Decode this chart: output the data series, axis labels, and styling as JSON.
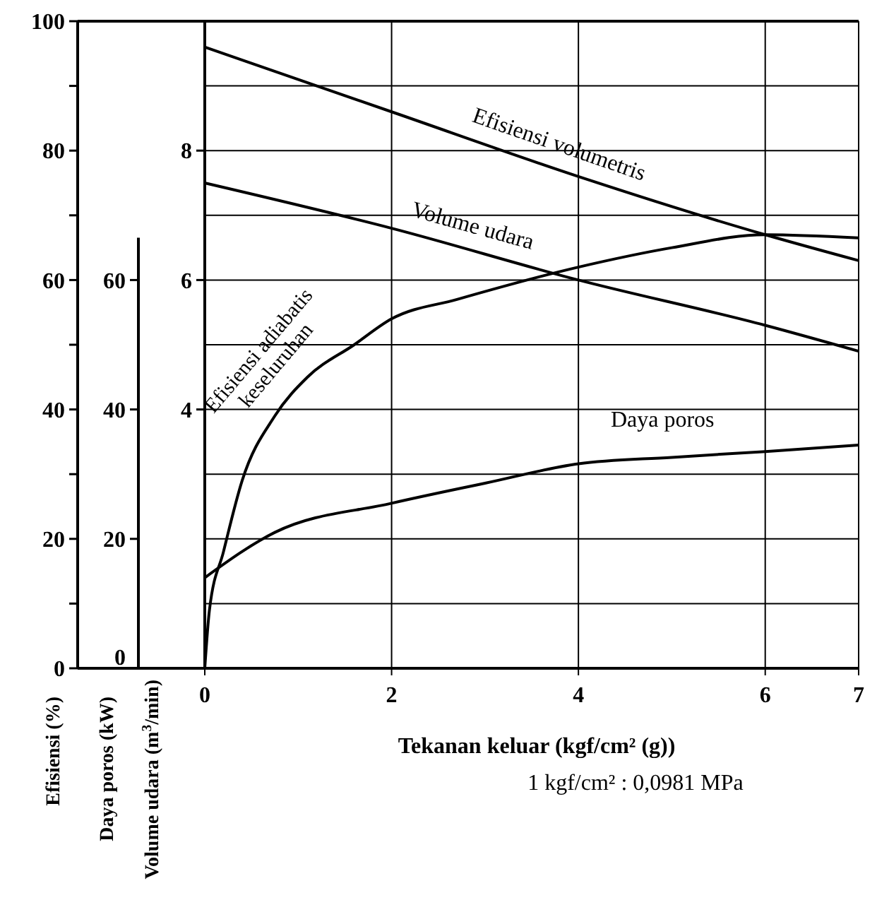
{
  "chart_data": {
    "type": "line",
    "xlabel": "Tekanan keluar  (kgf/cm² (g))",
    "ylabel": "Efisiensi (%)",
    "y2label": "Daya poros (kW)",
    "y3label": "Volume udara (m$^{3}$/min)",
    "annotations": [
      "1 kgf/cm² :   0,0981 MPa"
    ],
    "xlim": [
      0,
      7
    ],
    "xticks": [
      0,
      2,
      4,
      6,
      7
    ],
    "ylim": [
      0,
      100
    ],
    "yticks": [
      0,
      {
        "value": 10,
        "label": null
      },
      20,
      {
        "value": 30,
        "label": null
      },
      40,
      {
        "value": 50,
        "label": null
      },
      60,
      {
        "value": 70,
        "label": null
      },
      80,
      {
        "value": 90,
        "label": null
      },
      100
    ],
    "y2lim": [
      0,
      100
    ],
    "y2ticks": [
      0,
      20,
      40,
      60
    ],
    "y3lim": [
      0,
      10
    ],
    "y3ticks": [
      4,
      6,
      8
    ],
    "grid": true,
    "marker": "none",
    "line_style": "solid",
    "series": [
      {
        "name": "Efisiensi volumetris",
        "color": "#000000",
        "x": [
          0,
          2,
          4,
          6,
          7
        ],
        "values": [
          96,
          86,
          76,
          67,
          63
        ]
      },
      {
        "name": "Volume udara",
        "color": "#000000",
        "axis": "y3",
        "x": [
          0,
          2,
          4,
          6,
          7
        ],
        "values": [
          7.5,
          6.8,
          6.0,
          5.3,
          4.9
        ]
      },
      {
        "name": "Efisiensi adiabatis keseluruhan",
        "color": "#000000",
        "x": [
          0,
          0.05,
          0.2,
          0.4,
          0.75,
          1.1,
          1.6,
          2,
          2.7,
          4,
          5,
          6,
          7
        ],
        "values": [
          0,
          9,
          18,
          29,
          39,
          45,
          50,
          54,
          57,
          62,
          65,
          67,
          66.5
        ]
      },
      {
        "name": "Daya poros",
        "color": "#000000",
        "axis": "y2",
        "x": [
          0,
          0.75,
          2,
          3,
          4,
          5,
          6,
          7
        ],
        "values": [
          14,
          21,
          25.5,
          28.6,
          31.6,
          32.6,
          33.5,
          34.5
        ]
      }
    ]
  }
}
